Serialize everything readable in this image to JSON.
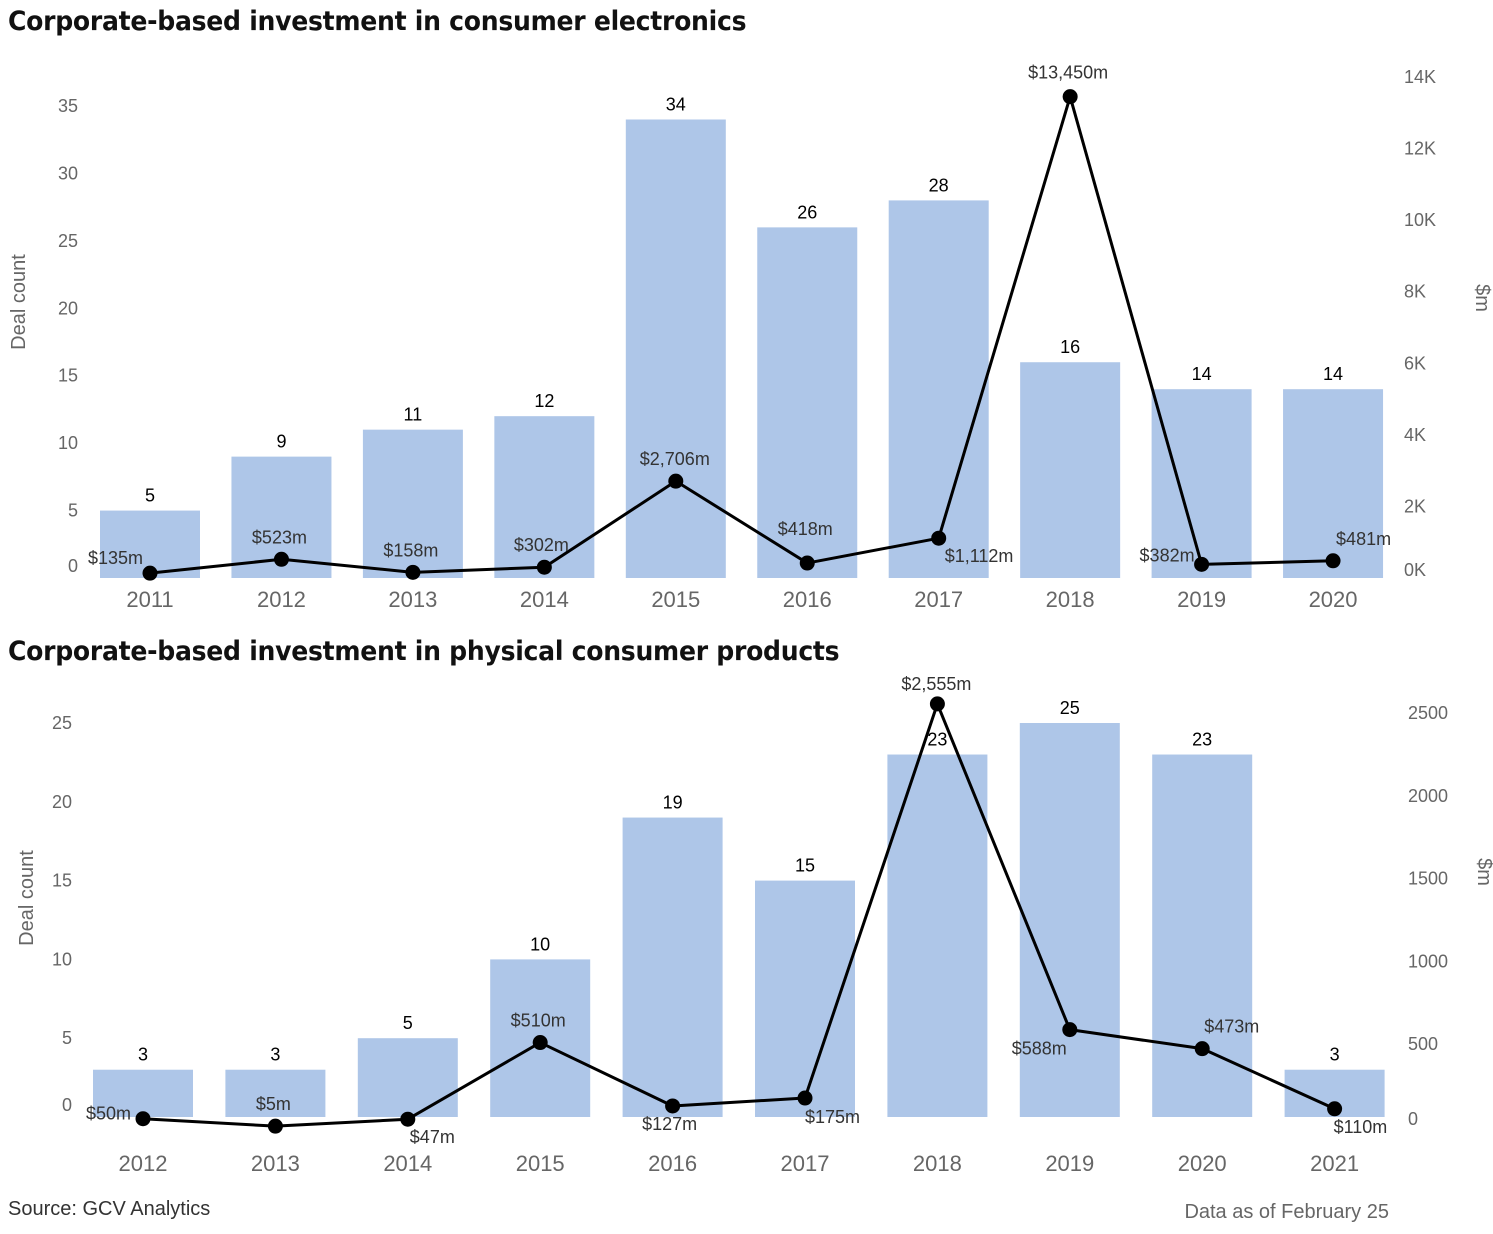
{
  "footer": {
    "source": "Source: GCV Analytics",
    "as_of": "Data as of February 25"
  },
  "colors": {
    "bar": "#aec6e8",
    "line": "#000000",
    "axis_text": "#666666",
    "label_text": "#000000",
    "money_label": "#333333"
  },
  "chart_data": [
    {
      "type": "bar+line",
      "title": "Corporate-based investment in consumer electronics",
      "xlabel": "",
      "ylabel": "Deal count",
      "y2label": "$m",
      "categories": [
        "2011",
        "2012",
        "2013",
        "2014",
        "2015",
        "2016",
        "2017",
        "2018",
        "2019",
        "2020"
      ],
      "series": [
        {
          "name": "Deal count",
          "type": "bar",
          "axis": "left",
          "values": [
            5,
            9,
            11,
            12,
            34,
            26,
            28,
            16,
            14,
            14
          ],
          "labels": [
            "5",
            "9",
            "11",
            "12",
            "34",
            "26",
            "28",
            "16",
            "14",
            "14"
          ]
        },
        {
          "name": "$m",
          "type": "line",
          "axis": "right",
          "values": [
            135,
            523,
            158,
            302,
            2706,
            418,
            1112,
            13450,
            382,
            481
          ],
          "labels": [
            "$135m",
            "$523m",
            "$158m",
            "$302m",
            "$2,706m",
            "$418m",
            "$1,112m",
            "$13,450m",
            "$382m",
            "$481m"
          ]
        }
      ],
      "ylim": [
        0,
        35
      ],
      "y2lim": [
        0,
        14000
      ],
      "yticks": [
        "0",
        "5",
        "10",
        "15",
        "20",
        "25",
        "30",
        "35"
      ],
      "yticks_values": [
        0,
        5,
        10,
        15,
        20,
        25,
        30,
        35
      ],
      "y2ticks": [
        "0K",
        "2K",
        "4K",
        "6K",
        "8K",
        "10K",
        "12K",
        "14K"
      ],
      "y2ticks_values": [
        0,
        2000,
        4000,
        6000,
        8000,
        10000,
        12000,
        14000
      ],
      "grid": false,
      "legend": "none"
    },
    {
      "type": "bar+line",
      "title": "Corporate-based investment in physical consumer products",
      "xlabel": "",
      "ylabel": "Deal count",
      "y2label": "$m",
      "categories": [
        "2012",
        "2013",
        "2014",
        "2015",
        "2016",
        "2017",
        "2018",
        "2019",
        "2020",
        "2021"
      ],
      "series": [
        {
          "name": "Deal count",
          "type": "bar",
          "axis": "left",
          "values": [
            3,
            3,
            5,
            10,
            19,
            15,
            23,
            25,
            23,
            3
          ],
          "labels": [
            "3",
            "3",
            "5",
            "10",
            "19",
            "15",
            "23",
            "25",
            "23",
            "3"
          ]
        },
        {
          "name": "$m",
          "type": "line",
          "axis": "right",
          "values": [
            50,
            5,
            47,
            510,
            127,
            175,
            2555,
            588,
            473,
            110
          ],
          "labels": [
            "$50m",
            "$5m",
            "$47m",
            "$510m",
            "$127m",
            "$175m",
            "$2,555m",
            "$588m",
            "$473m",
            "$110m"
          ]
        }
      ],
      "ylim": [
        0,
        25
      ],
      "y2lim": [
        0,
        2500
      ],
      "yticks": [
        "0",
        "5",
        "10",
        "15",
        "20",
        "25"
      ],
      "yticks_values": [
        0,
        5,
        10,
        15,
        20,
        25
      ],
      "y2ticks": [
        "0",
        "500",
        "1000",
        "1500",
        "2000",
        "2500"
      ],
      "y2ticks_values": [
        0,
        500,
        1000,
        1500,
        2000,
        2500
      ],
      "grid": false,
      "legend": "none"
    }
  ]
}
